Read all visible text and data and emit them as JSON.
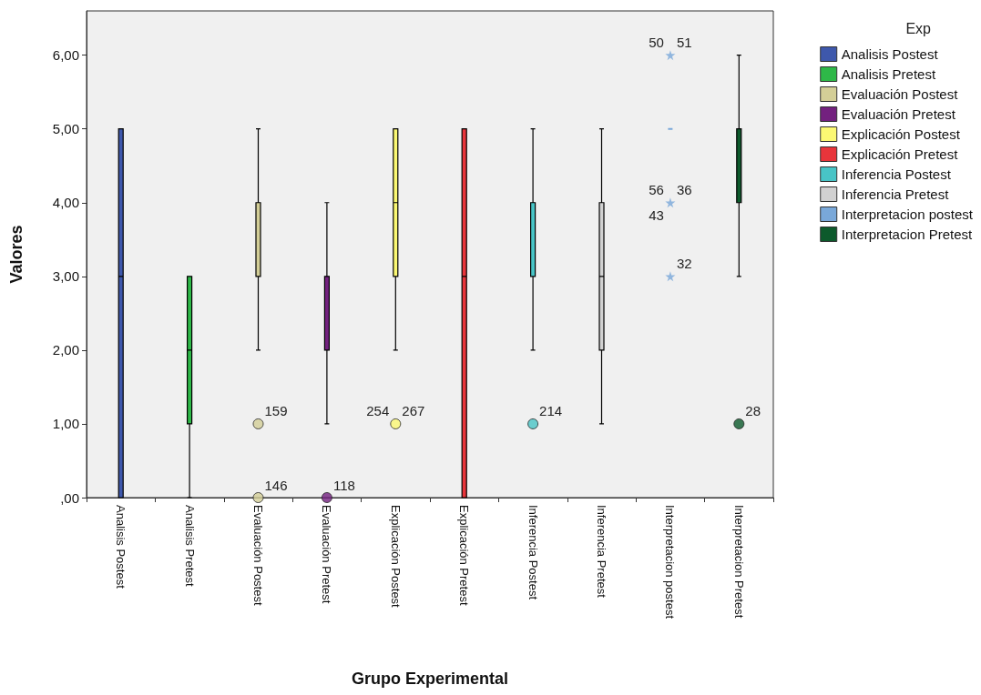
{
  "chart_data": {
    "type": "box",
    "xlabel": "Grupo Experimental",
    "ylabel": "Valores",
    "legend_title": "Exp",
    "categories": [
      "Analisis Postest",
      "Analisis Pretest",
      "Evaluación Postest",
      "Evaluación Pretest",
      "Explicación Postest",
      "Explicación Pretest",
      "Inferencia Postest",
      "Inferencia Pretest",
      "Interpretacion postest",
      "Interpretacion Pretest"
    ],
    "ylim": [
      0,
      6.6
    ],
    "yticks": [
      {
        "value": 0,
        "label": ",00"
      },
      {
        "value": 1,
        "label": "1,00"
      },
      {
        "value": 2,
        "label": "2,00"
      },
      {
        "value": 3,
        "label": "3,00"
      },
      {
        "value": 4,
        "label": "4,00"
      },
      {
        "value": 5,
        "label": "5,00"
      },
      {
        "value": 6,
        "label": "6,00"
      }
    ],
    "grid": false,
    "legend": "right",
    "marker": "circle",
    "series": [
      {
        "name": "Analisis Postest",
        "color": "#3e58ac",
        "boxes": [
          {
            "low": 0,
            "q1": 0,
            "median": 3,
            "q3": 5,
            "high": 5
          },
          null,
          null,
          null,
          null,
          null,
          null,
          null,
          null,
          null
        ]
      },
      {
        "name": "Analisis Pretest",
        "color": "#2eb848",
        "boxes": [
          null,
          {
            "low": 0,
            "q1": 1,
            "median": 2,
            "q3": 3,
            "high": 3
          },
          null,
          null,
          null,
          null,
          null,
          null,
          null,
          null
        ]
      },
      {
        "name": "Evaluación Postest",
        "color": "#d3ce97",
        "boxes": [
          null,
          null,
          {
            "low": 2,
            "q1": 3,
            "median": 4,
            "q3": 4,
            "high": 5
          },
          null,
          null,
          null,
          null,
          null,
          null,
          null
        ]
      },
      {
        "name": "Evaluación Pretest",
        "color": "#73217f",
        "boxes": [
          null,
          null,
          null,
          {
            "low": 1,
            "q1": 2,
            "median": 3,
            "q3": 3,
            "high": 4
          },
          null,
          null,
          null,
          null,
          null,
          null
        ]
      },
      {
        "name": "Explicación Postest",
        "color": "#fbf873",
        "boxes": [
          null,
          null,
          null,
          null,
          {
            "low": 2,
            "q1": 3,
            "median": 4,
            "q3": 5,
            "high": 5
          },
          null,
          null,
          null,
          null,
          null
        ]
      },
      {
        "name": "Explicación Pretest",
        "color": "#e8353b",
        "boxes": [
          null,
          null,
          null,
          null,
          null,
          {
            "low": 0,
            "q1": 0,
            "median": 3,
            "q3": 5,
            "high": 5
          },
          null,
          null,
          null,
          null
        ]
      },
      {
        "name": "Inferencia Postest",
        "color": "#48c4c6",
        "boxes": [
          null,
          null,
          null,
          null,
          null,
          null,
          {
            "low": 2,
            "q1": 3,
            "median": 4,
            "q3": 4,
            "high": 5
          },
          null,
          null,
          null
        ]
      },
      {
        "name": "Inferencia Pretest",
        "color": "#d1d1d1",
        "boxes": [
          null,
          null,
          null,
          null,
          null,
          null,
          null,
          {
            "low": 1,
            "q1": 2,
            "median": 3,
            "q3": 4,
            "high": 5
          },
          null,
          null
        ]
      },
      {
        "name": "Interpretacion postest",
        "color": "#79a8d9",
        "boxes": [
          null,
          null,
          null,
          null,
          null,
          null,
          null,
          null,
          {
            "low": 5,
            "q1": 5,
            "median": 5,
            "q3": 5,
            "high": 5
          },
          null
        ]
      },
      {
        "name": "Interpretacion Pretest",
        "color": "#0d5a2c",
        "boxes": [
          null,
          null,
          null,
          null,
          null,
          null,
          null,
          null,
          null,
          {
            "low": 3,
            "q1": 4,
            "median": 5,
            "q3": 5,
            "high": 6
          }
        ]
      },
      {
        "type": "scatter",
        "color": "#d3ce97",
        "x": [
          "Evaluación Postest",
          "Evaluación Postest"
        ],
        "values": [
          1,
          0
        ]
      },
      {
        "type": "scatter",
        "color": "#73217f",
        "x": [
          "Evaluación Pretest"
        ],
        "values": [
          0
        ]
      },
      {
        "type": "scatter",
        "color": "#fbf873",
        "x": [
          "Explicación Postest"
        ],
        "values": [
          1
        ]
      },
      {
        "type": "scatter",
        "color": "#48c4c6",
        "x": [
          "Inferencia Postest"
        ],
        "values": [
          1
        ]
      },
      {
        "type": "scatter",
        "color": "#79a8d9",
        "marker": "star",
        "x": [
          "Interpretacion postest",
          "Interpretacion postest",
          "Interpretacion postest"
        ],
        "values": [
          6,
          4,
          3
        ]
      },
      {
        "type": "scatter",
        "color": "#0d5a2c",
        "x": [
          "Interpretacion Pretest"
        ],
        "values": [
          1
        ]
      }
    ],
    "annotations": [
      {
        "text": "159",
        "x": "Evaluación Postest",
        "y": 1
      },
      {
        "text": "146",
        "x": "Evaluación Postest",
        "y": 0
      },
      {
        "text": "118",
        "x": "Evaluación Pretest",
        "y": 0
      },
      {
        "text": "267",
        "x": "Explicación Postest",
        "y": 1
      },
      {
        "text": "254",
        "x": "Explicación Postest",
        "y": 1
      },
      {
        "text": "214",
        "x": "Inferencia Postest",
        "y": 1
      },
      {
        "text": "51",
        "x": "Interpretacion postest",
        "y": 6
      },
      {
        "text": "50",
        "x": "Interpretacion postest",
        "y": 6
      },
      {
        "text": "36",
        "x": "Interpretacion postest",
        "y": 4
      },
      {
        "text": "56",
        "x": "Interpretacion postest",
        "y": 4
      },
      {
        "text": "43",
        "x": "Interpretacion postest",
        "y": 4
      },
      {
        "text": "32",
        "x": "Interpretacion postest",
        "y": 3
      },
      {
        "text": "28",
        "x": "Interpretacion Pretest",
        "y": 1
      }
    ]
  }
}
